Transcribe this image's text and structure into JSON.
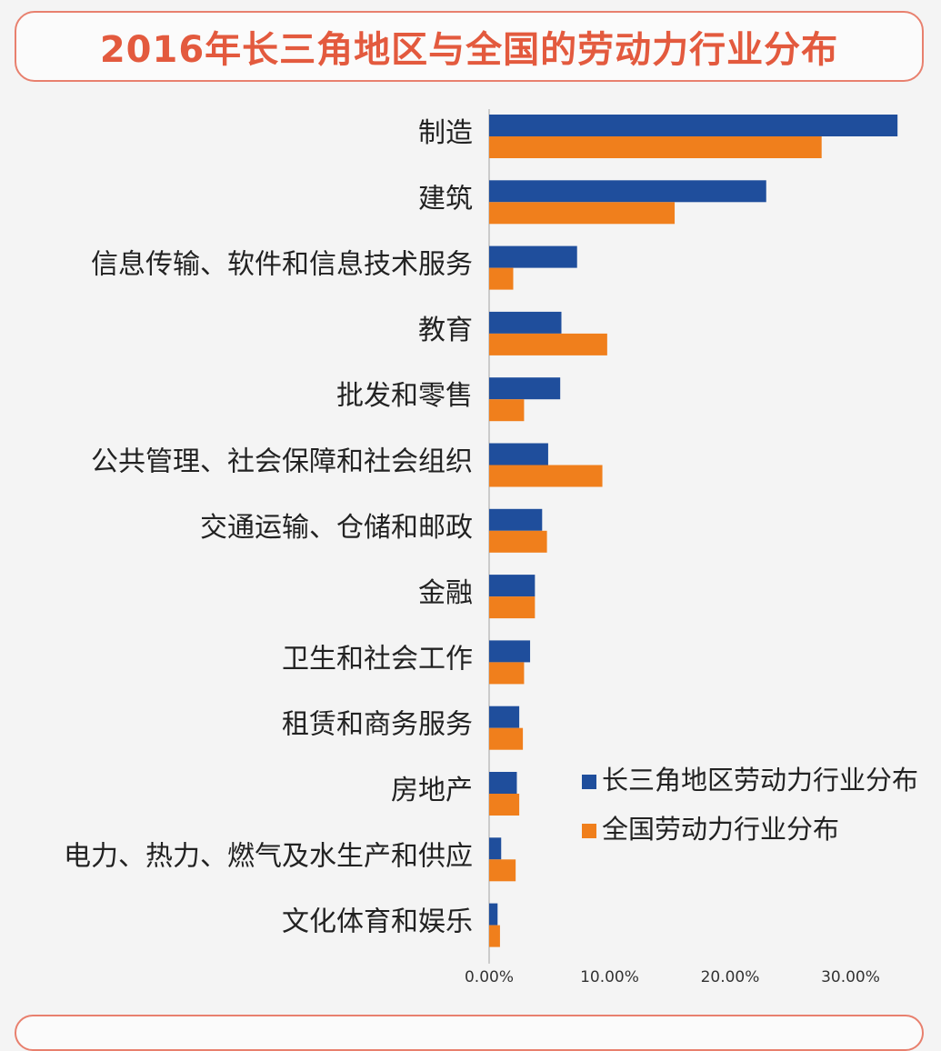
{
  "chart_data": {
    "type": "bar",
    "orientation": "horizontal",
    "title": "2016年长三角地区与全国的劳动力行业分布",
    "categories": [
      "制造",
      "建筑",
      "信息传输、软件和信息技术服务",
      "教育",
      "批发和零售",
      "公共管理、社会保障和社会组织",
      "交通运输、仓储和邮政",
      "金融",
      "卫生和社会工作",
      "租赁和商务服务",
      "房地产",
      "电力、热力、燃气及水生产和供应",
      "文化体育和娱乐"
    ],
    "series": [
      {
        "name": "长三角地区劳动力行业分布",
        "color": "#1f4e9c",
        "values": [
          33.9,
          23.0,
          7.3,
          6.0,
          5.9,
          4.9,
          4.4,
          3.8,
          3.4,
          2.5,
          2.3,
          1.0,
          0.7
        ]
      },
      {
        "name": "全国劳动力行业分布",
        "color": "#f07f1c",
        "values": [
          27.6,
          15.4,
          2.0,
          9.8,
          2.9,
          9.4,
          4.8,
          3.8,
          2.9,
          2.8,
          2.5,
          2.2,
          0.9
        ]
      }
    ],
    "xlim": [
      0,
      35
    ],
    "xticks": [
      "0.00%",
      "10.00%",
      "20.00%",
      "30.00%"
    ],
    "xtick_values": [
      0,
      10,
      20,
      30
    ],
    "legend_position": "right"
  }
}
